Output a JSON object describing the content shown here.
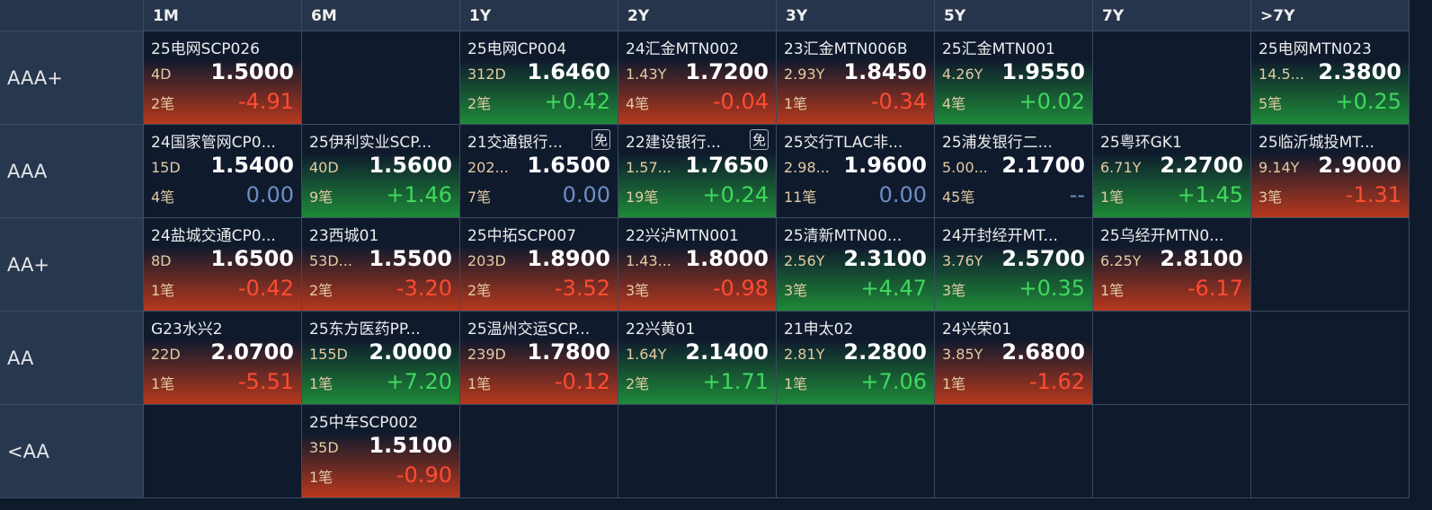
{
  "columns": [
    "1M",
    "6M",
    "1Y",
    "2Y",
    "3Y",
    "5Y",
    "7Y",
    ">7Y"
  ],
  "rows": [
    {
      "label": "AAA+",
      "cells": [
        {
          "name": "25电网SCP026",
          "term": "4D",
          "price": "1.5000",
          "count": "2笔",
          "change": "-4.91"
        },
        null,
        {
          "name": "25电网CP004",
          "term": "312D",
          "price": "1.6460",
          "count": "2笔",
          "change": "+0.42"
        },
        {
          "name": "24汇金MTN002",
          "term": "1.43Y",
          "price": "1.7200",
          "count": "4笔",
          "change": "-0.04"
        },
        {
          "name": "23汇金MTN006B",
          "term": "2.93Y",
          "price": "1.8450",
          "count": "1笔",
          "change": "-0.34"
        },
        {
          "name": "25汇金MTN001",
          "term": "4.26Y",
          "price": "1.9550",
          "count": "4笔",
          "change": "+0.02"
        },
        null,
        {
          "name": "25电网MTN023",
          "term": "14.5...",
          "price": "2.3800",
          "count": "5笔",
          "change": "+0.25"
        }
      ]
    },
    {
      "label": "AAA",
      "cells": [
        {
          "name": "24国家管网CP0...",
          "term": "15D",
          "price": "1.5400",
          "count": "4笔",
          "change": "0.00"
        },
        {
          "name": "25伊利实业SCP...",
          "term": "40D",
          "price": "1.5600",
          "count": "9笔",
          "change": "+1.46"
        },
        {
          "name": "21交通银行...",
          "badge": "免",
          "term": "202...",
          "price": "1.6500",
          "count": "7笔",
          "change": "0.00"
        },
        {
          "name": "22建设银行...",
          "badge": "免",
          "term": "1.57...",
          "price": "1.7650",
          "count": "19笔",
          "change": "+0.24"
        },
        {
          "name": "25交行TLAC非...",
          "term": "2.98...",
          "price": "1.9600",
          "count": "11笔",
          "change": "0.00"
        },
        {
          "name": "25浦发银行二...",
          "term": "5.00...",
          "price": "2.1700",
          "count": "45笔",
          "change": "--"
        },
        {
          "name": "25粤环GK1",
          "term": "6.71Y",
          "price": "2.2700",
          "count": "1笔",
          "change": "+1.45"
        },
        {
          "name": "25临沂城投MT...",
          "term": "9.14Y",
          "price": "2.9000",
          "count": "3笔",
          "change": "-1.31"
        }
      ]
    },
    {
      "label": "AA+",
      "cells": [
        {
          "name": "24盐城交通CP0...",
          "term": "8D",
          "price": "1.6500",
          "count": "1笔",
          "change": "-0.42"
        },
        {
          "name": "23西城01",
          "term": "53D...",
          "price": "1.5500",
          "count": "2笔",
          "change": "-3.20"
        },
        {
          "name": "25中拓SCP007",
          "term": "203D",
          "price": "1.8900",
          "count": "2笔",
          "change": "-3.52"
        },
        {
          "name": "22兴泸MTN001",
          "term": "1.43...",
          "price": "1.8000",
          "count": "3笔",
          "change": "-0.98"
        },
        {
          "name": "25清新MTN00...",
          "term": "2.56Y",
          "price": "2.3100",
          "count": "3笔",
          "change": "+4.47"
        },
        {
          "name": "24开封经开MT...",
          "term": "3.76Y",
          "price": "2.5700",
          "count": "3笔",
          "change": "+0.35"
        },
        {
          "name": "25乌经开MTN0...",
          "term": "6.25Y",
          "price": "2.8100",
          "count": "1笔",
          "change": "-6.17"
        },
        null
      ]
    },
    {
      "label": "AA",
      "cells": [
        {
          "name": "G23水兴2",
          "term": "22D",
          "price": "2.0700",
          "count": "1笔",
          "change": "-5.51"
        },
        {
          "name": "25东方医药PP...",
          "term": "155D",
          "price": "2.0000",
          "count": "1笔",
          "change": "+7.20"
        },
        {
          "name": "25温州交运SCP...",
          "term": "239D",
          "price": "1.7800",
          "count": "1笔",
          "change": "-0.12"
        },
        {
          "name": "22兴黄01",
          "term": "1.64Y",
          "price": "2.1400",
          "count": "2笔",
          "change": "+1.71"
        },
        {
          "name": "21申太02",
          "term": "2.81Y",
          "price": "2.2800",
          "count": "1笔",
          "change": "+7.06"
        },
        {
          "name": "24兴荣01",
          "term": "3.85Y",
          "price": "2.6800",
          "count": "1笔",
          "change": "-1.62"
        },
        null,
        null
      ]
    },
    {
      "label": "<AA",
      "cells": [
        null,
        {
          "name": "25中车SCP002",
          "term": "35D",
          "price": "1.5100",
          "count": "1笔",
          "change": "-0.90"
        },
        null,
        null,
        null,
        null,
        null,
        null
      ]
    }
  ]
}
